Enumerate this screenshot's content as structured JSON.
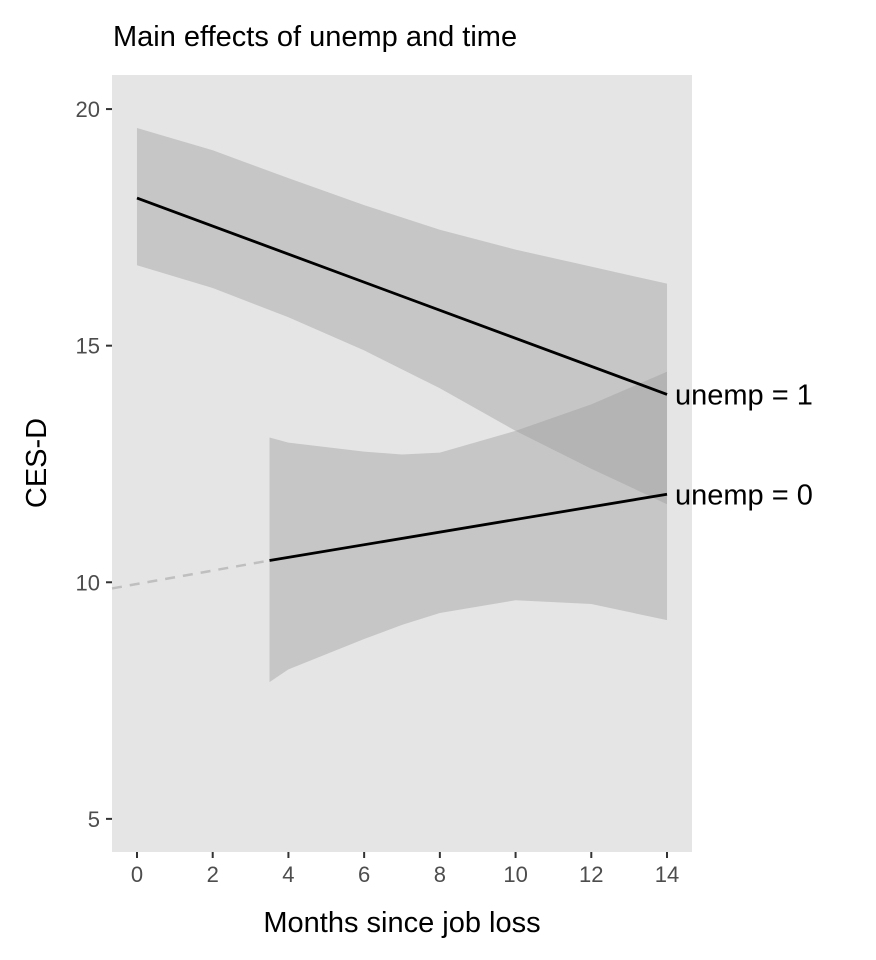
{
  "chart_data": {
    "type": "line",
    "title": "Main effects of unemp and time",
    "xlabel": "Months since job loss",
    "ylabel": "CES-D",
    "xlim": [
      -0.66,
      14.66
    ],
    "ylim": [
      4.3,
      20.72
    ],
    "xticks": [
      0,
      2,
      4,
      6,
      8,
      10,
      12,
      14
    ],
    "xtick_labels": [
      "0",
      "2",
      "4",
      "6",
      "8",
      "10",
      "12",
      "14"
    ],
    "yticks": [
      5,
      10,
      15,
      20
    ],
    "ytick_labels": [
      "5",
      "10",
      "15",
      "20"
    ],
    "grid": false,
    "background": "#e5e5e5",
    "series": [
      {
        "name": "unemp = 1",
        "label": "unemp = 1",
        "color": "#000000",
        "x": [
          0,
          14
        ],
        "y": [
          18.12,
          13.97
        ],
        "ribbon": {
          "x": [
            0,
            2,
            4,
            6,
            8,
            10,
            12,
            14
          ],
          "upper": [
            19.6,
            19.13,
            18.54,
            17.97,
            17.45,
            17.03,
            16.67,
            16.31
          ],
          "lower": [
            16.7,
            16.22,
            15.6,
            14.9,
            14.1,
            13.2,
            12.4,
            11.65
          ]
        }
      },
      {
        "name": "unemp = 0",
        "label": "unemp = 0",
        "color": "#000000",
        "x": [
          3.5,
          14
        ],
        "y": [
          10.46,
          11.86
        ],
        "extrapolation": {
          "x": [
            -0.66,
            3.5
          ],
          "y": [
            9.87,
            10.46
          ],
          "style": "dashed",
          "color": "#bfbfbf"
        },
        "ribbon": {
          "x": [
            3.5,
            4,
            6,
            7,
            8,
            10,
            12,
            14
          ],
          "upper": [
            13.06,
            12.95,
            12.76,
            12.7,
            12.74,
            13.2,
            13.76,
            14.45
          ],
          "lower": [
            7.89,
            8.16,
            8.8,
            9.1,
            9.35,
            9.62,
            9.54,
            9.2
          ]
        }
      }
    ]
  }
}
